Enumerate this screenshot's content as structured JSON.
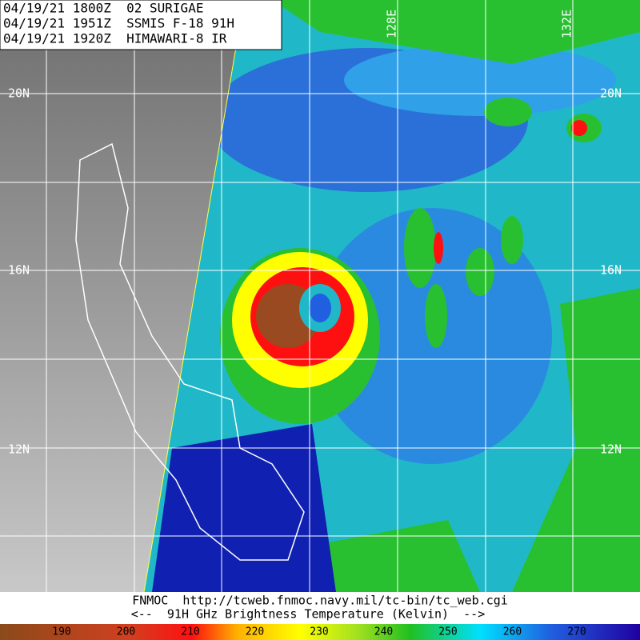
{
  "header": {
    "lines": [
      "04/19/21 1800Z  02 SURIGAE",
      "04/19/21 1951Z  SSMIS F-18 91H",
      "04/19/21 1920Z  HIMAWARI-8 IR"
    ]
  },
  "grid": {
    "lat_labels": [
      "20N",
      "16N",
      "12N"
    ],
    "lon_labels": [
      "128E",
      "132E"
    ]
  },
  "footer": {
    "lines": [
      "FNMOC  http://tcweb.fnmoc.navy.mil/tc-bin/tc_web.cgi",
      "<--  91H GHz Brightness Temperature (Kelvin)  -->"
    ]
  },
  "colorbar": {
    "ticks": [
      "190",
      "200",
      "210",
      "220",
      "230",
      "240",
      "250",
      "260",
      "270"
    ]
  }
}
